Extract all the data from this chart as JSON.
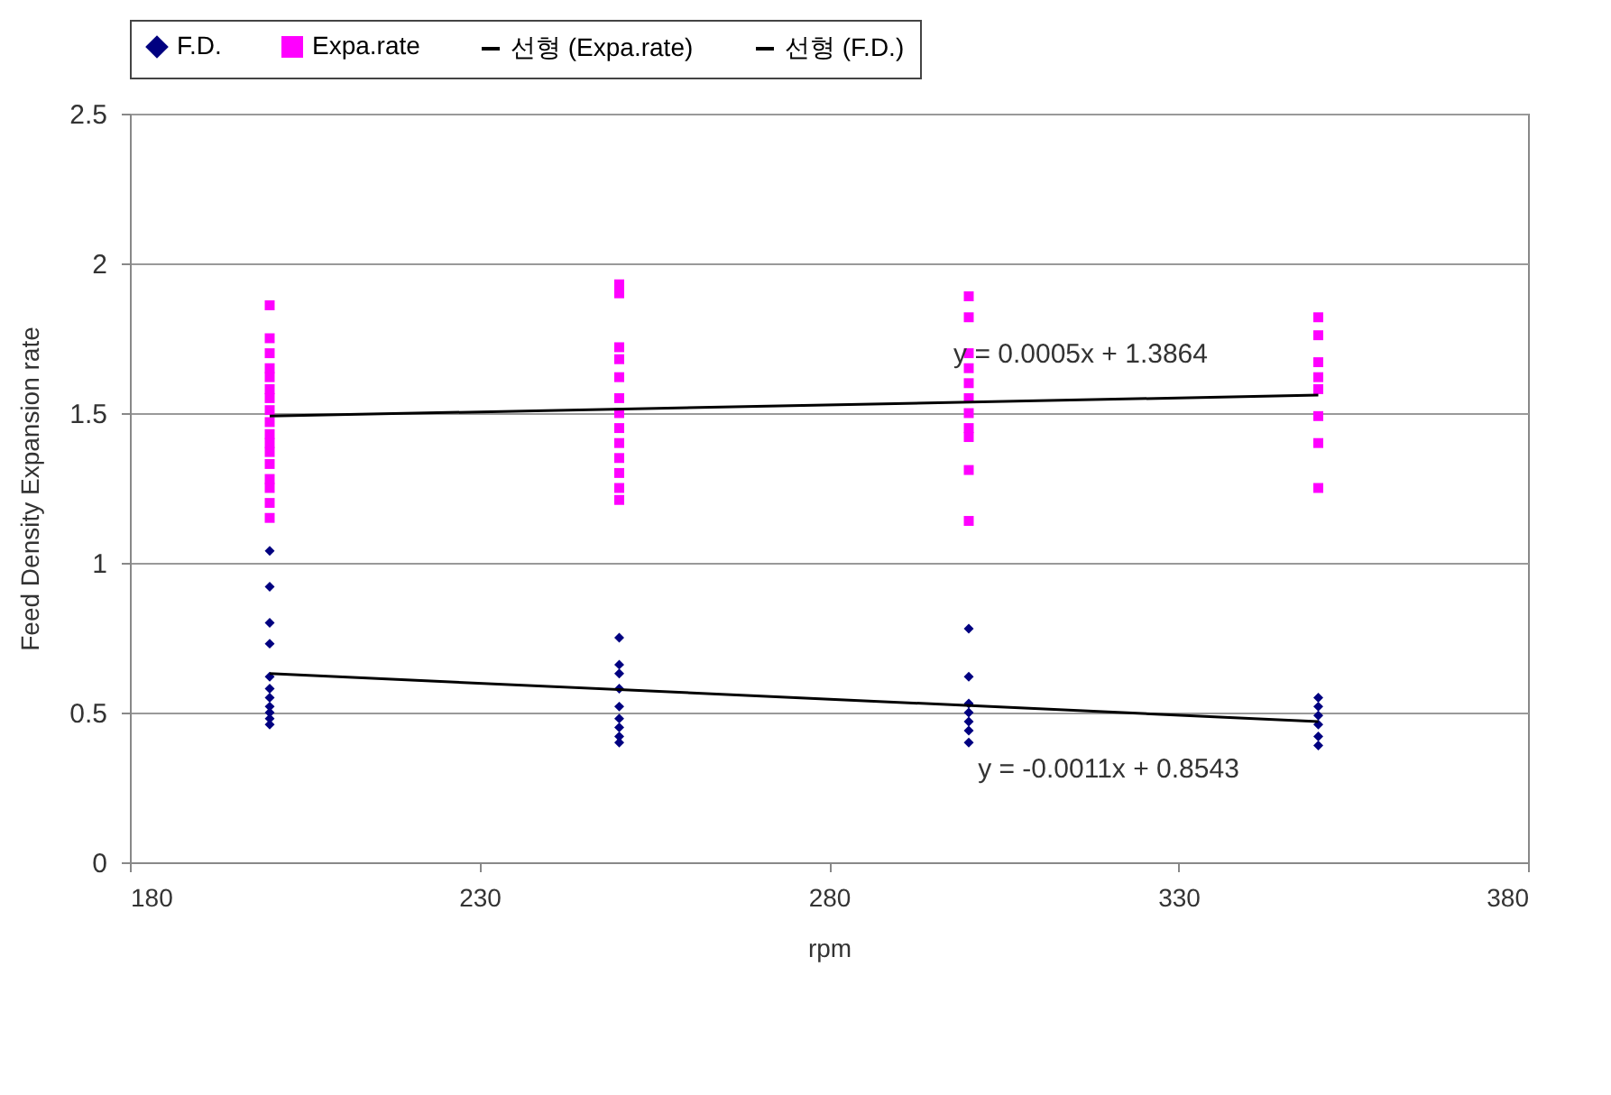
{
  "chart_data": {
    "type": "scatter",
    "xlabel": "rpm",
    "ylabel": "Feed Density  Expansion rate",
    "xlim": [
      180,
      380
    ],
    "xticks": [
      180,
      230,
      280,
      330,
      380
    ],
    "ylim": [
      0,
      2.5
    ],
    "yticks": [
      0,
      0.5,
      1,
      1.5,
      2,
      2.5
    ],
    "grid": "y",
    "legend": "top",
    "series": [
      {
        "name": "F.D.",
        "color": "#000080",
        "marker": "diamond",
        "x": [
          200,
          200,
          200,
          200,
          200,
          200,
          200,
          200,
          200,
          200,
          200,
          250,
          250,
          250,
          250,
          250,
          250,
          250,
          250,
          250,
          300,
          300,
          300,
          300,
          300,
          300,
          300,
          350,
          350,
          350,
          350,
          350,
          350
        ],
        "values": [
          1.04,
          0.92,
          0.8,
          0.73,
          0.62,
          0.58,
          0.55,
          0.52,
          0.5,
          0.48,
          0.46,
          0.75,
          0.66,
          0.63,
          0.58,
          0.52,
          0.48,
          0.45,
          0.42,
          0.4,
          0.78,
          0.62,
          0.53,
          0.5,
          0.47,
          0.44,
          0.4,
          0.55,
          0.52,
          0.49,
          0.46,
          0.42,
          0.39
        ]
      },
      {
        "name": "Expa.rate",
        "color": "#ff00ff",
        "marker": "square",
        "x": [
          200,
          200,
          200,
          200,
          200,
          200,
          200,
          200,
          200,
          200,
          200,
          200,
          200,
          200,
          200,
          200,
          200,
          250,
          250,
          250,
          250,
          250,
          250,
          250,
          250,
          250,
          250,
          250,
          250,
          250,
          300,
          300,
          300,
          300,
          300,
          300,
          300,
          300,
          300,
          300,
          300,
          350,
          350,
          350,
          350,
          350,
          350,
          350,
          350
        ],
        "values": [
          1.86,
          1.75,
          1.7,
          1.65,
          1.62,
          1.58,
          1.55,
          1.51,
          1.47,
          1.43,
          1.4,
          1.37,
          1.33,
          1.28,
          1.25,
          1.2,
          1.15,
          1.93,
          1.9,
          1.72,
          1.68,
          1.62,
          1.55,
          1.5,
          1.45,
          1.4,
          1.35,
          1.3,
          1.25,
          1.21,
          1.89,
          1.82,
          1.7,
          1.65,
          1.6,
          1.55,
          1.5,
          1.45,
          1.42,
          1.31,
          1.14,
          1.82,
          1.76,
          1.67,
          1.62,
          1.58,
          1.49,
          1.4,
          1.25
        ]
      },
      {
        "name": "선형 (Expa.rate)",
        "type": "line",
        "color": "#000000",
        "x": [
          200,
          350
        ],
        "values": [
          1.49,
          1.56
        ]
      },
      {
        "name": "선형 (F.D.)",
        "type": "line",
        "color": "#000000",
        "x": [
          200,
          350
        ],
        "values": [
          0.63,
          0.47
        ]
      }
    ],
    "annotations": [
      "y = 0.0005x + 1.3864",
      "y = -0.0011x + 0.8543"
    ]
  }
}
